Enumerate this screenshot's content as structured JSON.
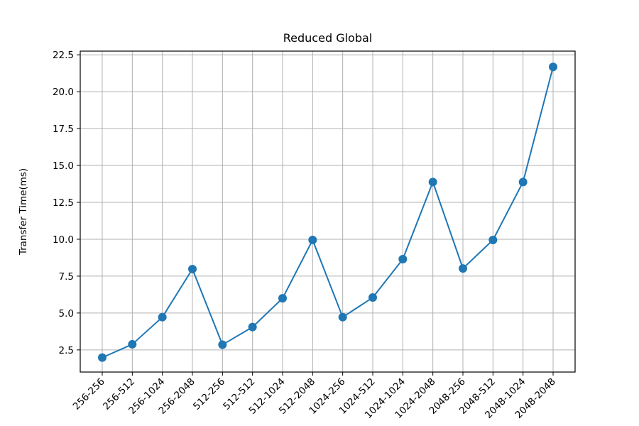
{
  "chart_data": {
    "type": "line",
    "title": "Reduced Global",
    "xlabel": "",
    "ylabel": "Transfer Time(ms)",
    "categories": [
      "256-256",
      "256-512",
      "256-1024",
      "256-2048",
      "512-256",
      "512-512",
      "512-1024",
      "512-2048",
      "1024-256",
      "1024-512",
      "1024-1024",
      "1024-2048",
      "2048-256",
      "2048-512",
      "2048-1024",
      "2048-2048"
    ],
    "series": [
      {
        "values": [
          1.98,
          2.88,
          4.72,
          7.98,
          2.85,
          4.05,
          6.0,
          9.95,
          4.72,
          6.05,
          8.65,
          13.88,
          8.02,
          9.95,
          13.88,
          21.68
        ]
      }
    ],
    "ylim": [
      1.0,
      22.75
    ],
    "yticks": [
      "2.5",
      "5.0",
      "7.5",
      "10.0",
      "12.5",
      "15.0",
      "17.5",
      "20.0",
      "22.5"
    ],
    "grid": true,
    "colors": {
      "line": "#1f77b4",
      "grid": "#b0b0b0",
      "axes": "#000000"
    }
  }
}
